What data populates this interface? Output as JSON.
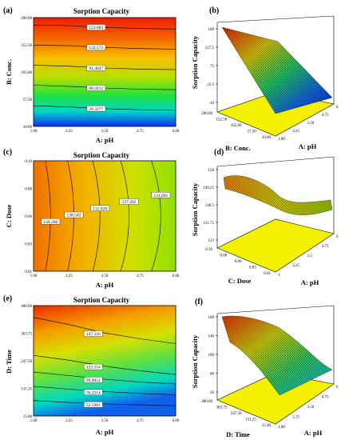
{
  "chart_data": [
    {
      "panel": "(a)",
      "type": "contour",
      "title": "Sorption Capacity",
      "xlabel": "A: pH",
      "ylabel": "B: Conc.",
      "xticks": [
        "1.00",
        "2.25",
        "3.50",
        "4.75",
        "6.00"
      ],
      "yticks": [
        "10.00",
        "57.50",
        "105.00",
        "152.50",
        "200.00"
      ],
      "xlim": [
        1,
        6
      ],
      "ylim": [
        10,
        200
      ],
      "contours": [
        {
          "label": "153.683",
          "y": [
            187,
            186,
            183,
            181,
            180
          ]
        },
        {
          "label": "122.573",
          "y": [
            152,
            151,
            148,
            146,
            145
          ]
        },
        {
          "label": "91.4647",
          "y": [
            117,
            115,
            112,
            110,
            109
          ]
        },
        {
          "label": "60.4112",
          "y": [
            82,
            80,
            77,
            75,
            74
          ]
        },
        {
          "label": "29.3277",
          "y": [
            46,
            44,
            41,
            39,
            38
          ]
        }
      ]
    },
    {
      "panel": "(b)",
      "type": "surface",
      "zlabel": "Sorption Capacity",
      "xlabel": "A: pH",
      "ylabel": "B: Conc.",
      "zticks": [
        "-10",
        "22.5",
        "75",
        "127.5",
        "180"
      ],
      "xticks": [
        "1.00",
        "2.25",
        "3.50",
        "4.75",
        "6"
      ],
      "yticks": [
        "10.00",
        "57.50",
        "105.00",
        "152.50",
        "200.00"
      ]
    },
    {
      "panel": "(c)",
      "type": "contour",
      "title": "Sorption Capacity",
      "xlabel": "A: pH",
      "ylabel": "C: Dose",
      "xticks": [
        "1.00",
        "2.25",
        "3.50",
        "4.75",
        "6.00"
      ],
      "yticks": [
        "0.01",
        "0.03",
        "0.06",
        "0.08",
        "0.10"
      ],
      "xlim": [
        1,
        6
      ],
      "ylim": [
        0.01,
        0.1
      ],
      "contours": [
        {
          "label": "144.266",
          "x": 1.5
        },
        {
          "label": "138.542",
          "x": 2.3
        },
        {
          "label": "132.828",
          "x": 3.2
        },
        {
          "label": "127.205",
          "x": 4.2
        },
        {
          "label": "121.691",
          "x": 5.3
        }
      ]
    },
    {
      "panel": "(d)",
      "type": "surface",
      "zlabel": "Sorption Capacity",
      "xlabel": "A: pH",
      "ylabel": "C: Dose",
      "zticks": [
        "123",
        "131.75",
        "140.5",
        "149.25",
        "158"
      ],
      "xticks": [
        "1",
        "2.25",
        "3.5",
        "4.75",
        "6"
      ],
      "yticks": [
        "0.01",
        "0.03",
        "0.06",
        "0.08",
        "0.10"
      ]
    },
    {
      "panel": "(e)",
      "type": "contour",
      "title": "Sorption Capacity",
      "xlabel": "A: pH",
      "ylabel": "D: Time",
      "xticks": [
        "1.00",
        "2.25",
        "3.50",
        "4.75",
        "6.00"
      ],
      "yticks": [
        "15.00",
        "131.25",
        "247.50",
        "363.75",
        "480.00"
      ],
      "xlim": [
        1,
        6
      ],
      "ylim": [
        15,
        480
      ],
      "contours": [
        {
          "label": "147.318",
          "y": [
            430,
            400,
            365,
            340,
            320
          ]
        },
        {
          "label": "123.554",
          "y": [
            270,
            250,
            225,
            205,
            190
          ]
        },
        {
          "label": "99.9051",
          "y": [
            200,
            185,
            170,
            158,
            150
          ]
        },
        {
          "label": "76.2514",
          "y": [
            140,
            128,
            118,
            110,
            104
          ]
        },
        {
          "label": "52.5981",
          "y": [
            80,
            72,
            66,
            62,
            58
          ]
        }
      ]
    },
    {
      "panel": "(f)",
      "type": "surface",
      "zlabel": "Sorption Capacity",
      "xlabel": "A: pH",
      "ylabel": "D: Time",
      "zticks": [
        "20",
        "60",
        "100",
        "140",
        "180"
      ],
      "xticks": [
        "1.00",
        "2.25",
        "3.50",
        "4.75",
        "6"
      ],
      "yticks": [
        "15.00",
        "131.25",
        "247.50",
        "363.75",
        "480.00"
      ]
    }
  ]
}
